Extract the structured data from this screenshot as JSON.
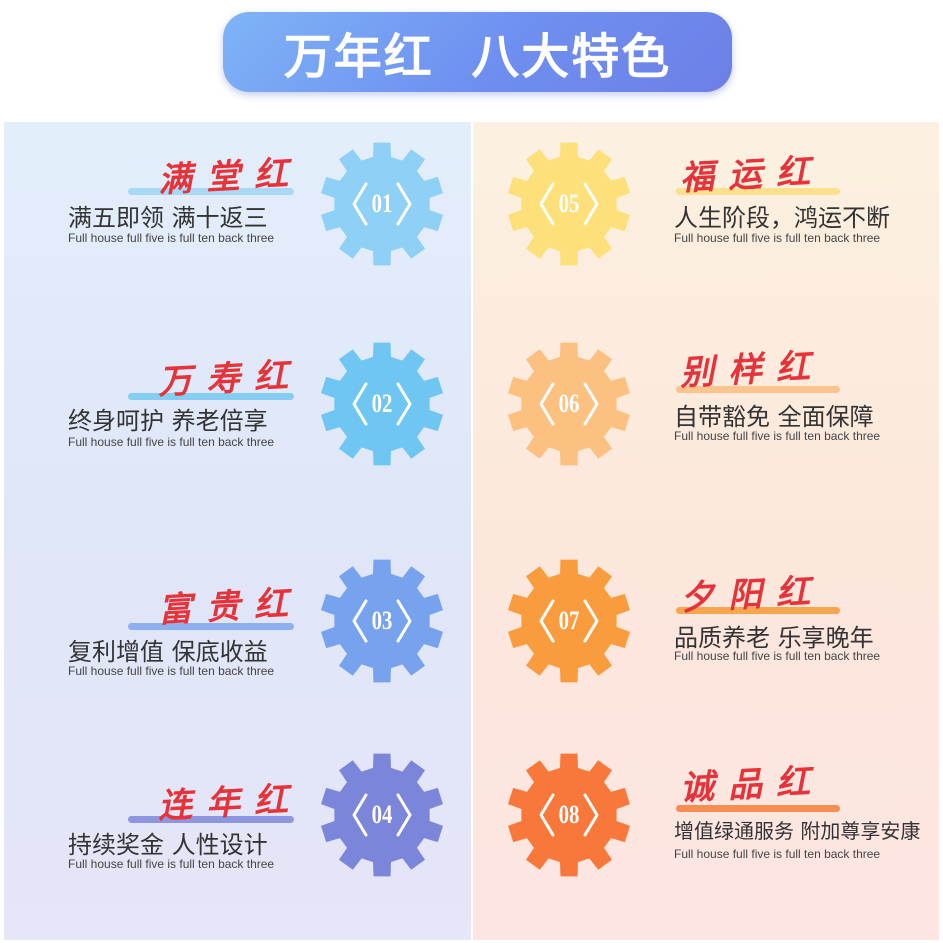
{
  "title": "万年红  八大特色",
  "features": [
    {
      "number": "01",
      "name": "满堂红",
      "headline": "满五即领  满十返三",
      "subtitle": "Full house full five is full ten back three",
      "gear_color": "#8fd0f7",
      "underline_color": "#a9d8f6"
    },
    {
      "number": "02",
      "name": "万寿红",
      "headline": "终身呵护  养老倍享",
      "subtitle": "Full house full five is full ten back three",
      "gear_color": "#6fc6f2",
      "underline_color": "#86cdf2"
    },
    {
      "number": "03",
      "name": "富贵红",
      "headline": "复利增值 保底收益",
      "subtitle": "Full house full five is full ten back three",
      "gear_color": "#76a2ee",
      "underline_color": "#8fb0ee"
    },
    {
      "number": "04",
      "name": "连年红",
      "headline": "持续奖金 人性设计",
      "subtitle": "Full house full five is full ten back three",
      "gear_color": "#7b86db",
      "underline_color": "#8d96de"
    },
    {
      "number": "05",
      "name": "福运红",
      "headline": "人生阶段，鸿运不断",
      "subtitle": "Full house full five is full ten back three",
      "gear_color": "#fde07a",
      "underline_color": "#fce08e"
    },
    {
      "number": "06",
      "name": "别样红",
      "headline": "自带豁免 全面保障",
      "subtitle": "Full house full five is full ten back three",
      "gear_color": "#fcc080",
      "underline_color": "#fbc48c"
    },
    {
      "number": "07",
      "name": "夕阳红",
      "headline": "品质养老 乐享晚年",
      "subtitle": "Full house full five is full ten back three",
      "gear_color": "#f99c3d",
      "underline_color": "#f8a550"
    },
    {
      "number": "08",
      "name": "诚品红",
      "headline": "增值绿通服务 附加尊享安康",
      "subtitle": "Full house full five is full ten back three",
      "gear_color": "#f7783a",
      "underline_color": "#f68d52"
    }
  ]
}
